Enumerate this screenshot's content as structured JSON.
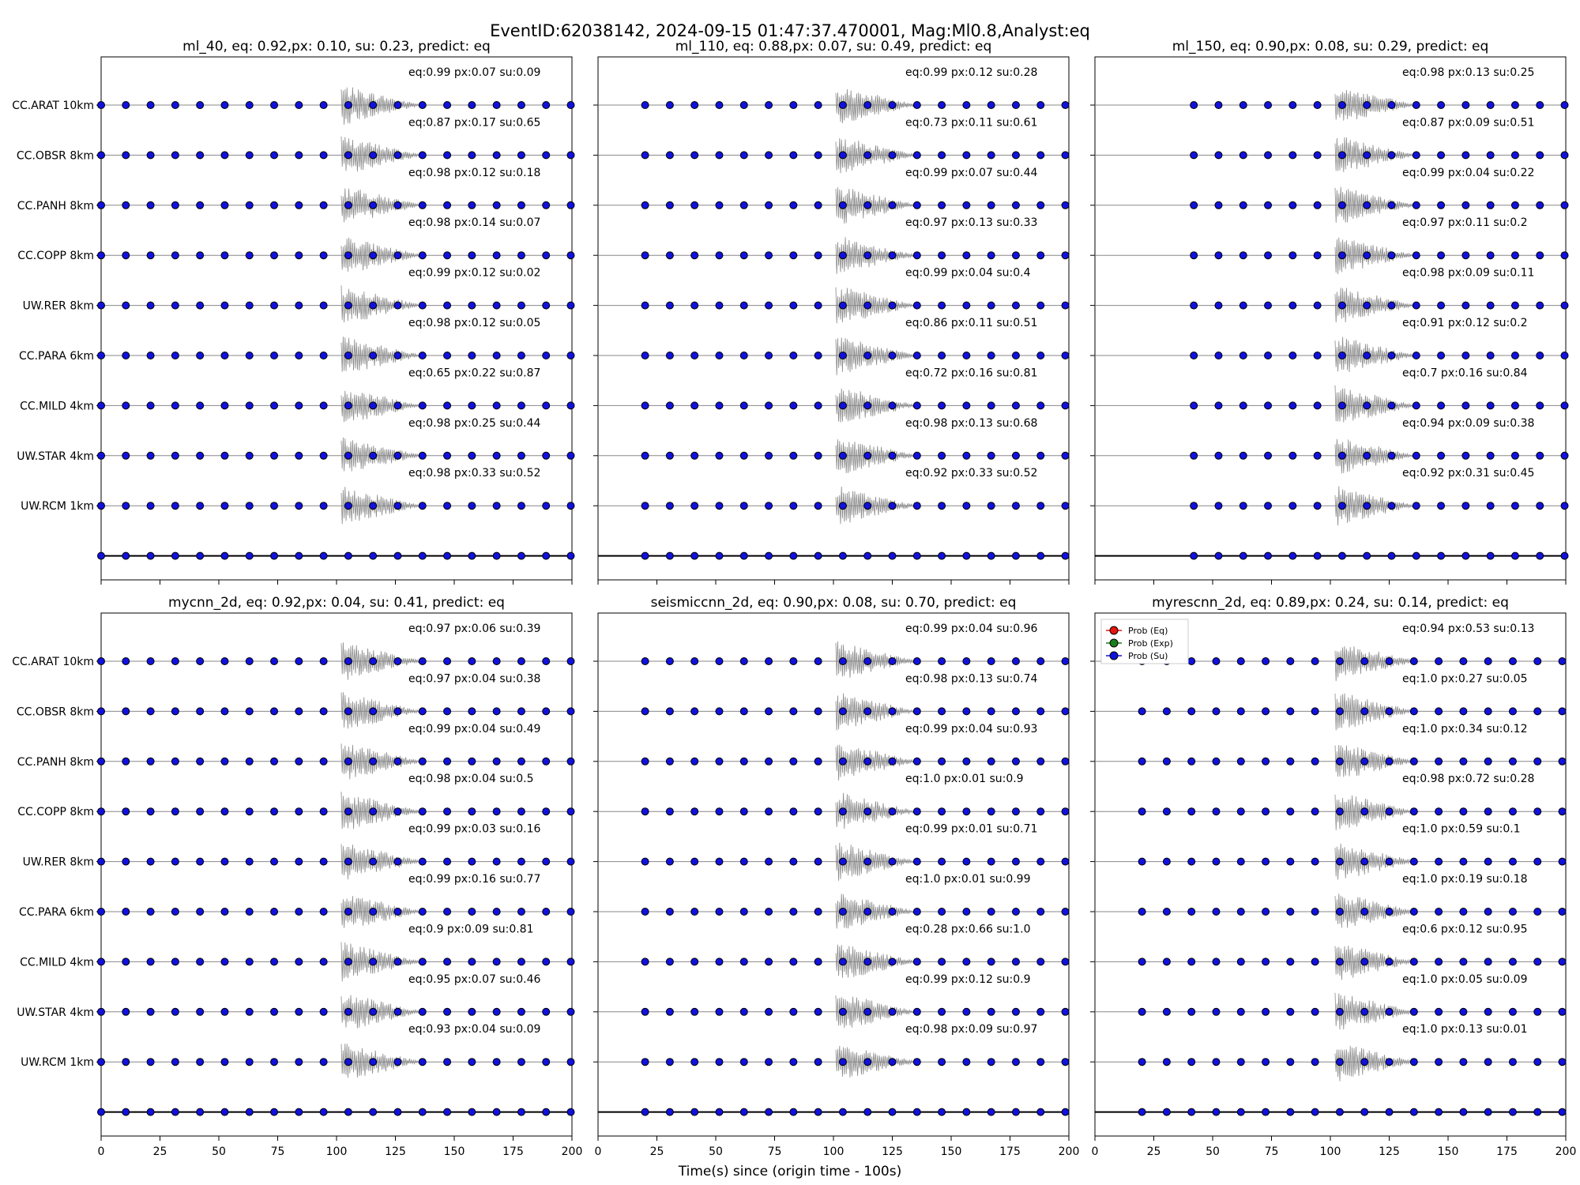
{
  "figure": {
    "suptitle": "EventID:62038142, 2024-09-15 01:47:37.470001, Mag:Ml0.8,Analyst:eq",
    "xlabel": "Time(s) since (origin time - 100s)"
  },
  "colors": {
    "eq": "#e8140f",
    "exp": "#1a7f1a",
    "su": "#1111dd",
    "waveform": "#888888"
  },
  "legend": {
    "entries": [
      "Prob (Eq)",
      "Prob (Exp)",
      "Prob (Su)"
    ],
    "panel_index": 5,
    "placement": "top-left"
  },
  "chart_data": [
    {
      "type": "scatter",
      "title": "ml_40, eq: 0.92,px: 0.10, su: 0.23, predict: eq",
      "xlim": [
        0,
        200
      ],
      "xticks": [],
      "stations": [
        "CC.ARAT 10km",
        "CC.OBSR 8km",
        "CC.PANH 8km",
        "CC.COPP 8km",
        "UW.RER 8km",
        "CC.PARA 6km",
        "CC.MILD 4km",
        "UW.STAR 4km",
        "UW.RCM 1km"
      ],
      "annotations": [
        "eq:0.99  px:0.07  su:0.09",
        "eq:0.87  px:0.17  su:0.65",
        "eq:0.98  px:0.12  su:0.18",
        "eq:0.98  px:0.14  su:0.07",
        "eq:0.99  px:0.12  su:0.02",
        "eq:0.98  px:0.12  su:0.05",
        "eq:0.65  px:0.22  su:0.87",
        "eq:0.98  px:0.25  su:0.44",
        "eq:0.98  px:0.33  su:0.52"
      ]
    },
    {
      "type": "scatter",
      "title": "ml_110, eq: 0.88,px: 0.07, su: 0.49, predict: eq",
      "xlim": [
        0,
        200
      ],
      "xticks": [],
      "stations": [],
      "annotations": [
        "eq:0.99  px:0.12  su:0.28",
        "eq:0.73  px:0.11  su:0.61",
        "eq:0.99  px:0.07  su:0.44",
        "eq:0.97  px:0.13  su:0.33",
        "eq:0.99  px:0.04  su:0.4",
        "eq:0.86  px:0.11  su:0.51",
        "eq:0.72  px:0.16  su:0.81",
        "eq:0.98  px:0.13  su:0.68",
        "eq:0.92  px:0.33  su:0.52"
      ]
    },
    {
      "type": "scatter",
      "title": "ml_150, eq: 0.90,px: 0.08, su: 0.29, predict: eq",
      "xlim": [
        0,
        200
      ],
      "xticks": [],
      "stations": [],
      "annotations": [
        "eq:0.98  px:0.13  su:0.25",
        "eq:0.87  px:0.09  su:0.51",
        "eq:0.99  px:0.04  su:0.22",
        "eq:0.97  px:0.11  su:0.2",
        "eq:0.98  px:0.09  su:0.11",
        "eq:0.91  px:0.12  su:0.2",
        "eq:0.7    px:0.16  su:0.84",
        "eq:0.94  px:0.09  su:0.38",
        "eq:0.92  px:0.31  su:0.45"
      ]
    },
    {
      "type": "scatter",
      "title": "mycnn_2d, eq: 0.92,px: 0.04, su: 0.41, predict: eq",
      "xlim": [
        0,
        200
      ],
      "xticks": [
        "0",
        "25",
        "50",
        "75",
        "100",
        "125",
        "150",
        "175",
        "200"
      ],
      "stations": [
        "CC.ARAT 10km",
        "CC.OBSR 8km",
        "CC.PANH 8km",
        "CC.COPP 8km",
        "UW.RER 8km",
        "CC.PARA 6km",
        "CC.MILD 4km",
        "UW.STAR 4km",
        "UW.RCM 1km"
      ],
      "annotations": [
        "eq:0.97  px:0.06  su:0.39",
        "eq:0.97  px:0.04  su:0.38",
        "eq:0.99  px:0.04  su:0.49",
        "eq:0.98  px:0.04  su:0.5",
        "eq:0.99  px:0.03  su:0.16",
        "eq:0.99  px:0.16  su:0.77",
        "eq:0.9    px:0.09  su:0.81",
        "eq:0.95  px:0.07  su:0.46",
        "eq:0.93  px:0.04  su:0.09"
      ]
    },
    {
      "type": "scatter",
      "title": "seismiccnn_2d, eq: 0.90,px: 0.08, su: 0.70, predict: eq",
      "xlim": [
        0,
        200
      ],
      "xticks": [
        "0",
        "25",
        "50",
        "75",
        "100",
        "125",
        "150",
        "175",
        "200"
      ],
      "stations": [],
      "annotations": [
        "eq:0.99  px:0.04  su:0.96",
        "eq:0.98  px:0.13  su:0.74",
        "eq:0.99  px:0.04  su:0.93",
        "eq:1.0    px:0.01  su:0.9",
        "eq:0.99  px:0.01  su:0.71",
        "eq:1.0    px:0.01  su:0.99",
        "eq:0.28  px:0.66  su:1.0",
        "eq:0.99  px:0.12  su:0.9",
        "eq:0.98  px:0.09  su:0.97"
      ]
    },
    {
      "type": "scatter",
      "title": "myrescnn_2d, eq: 0.89,px: 0.24, su: 0.14, predict: eq",
      "xlim": [
        0,
        200
      ],
      "xticks": [
        "0",
        "25",
        "50",
        "75",
        "100",
        "125",
        "150",
        "175",
        "200"
      ],
      "stations": [],
      "annotations": [
        "eq:0.94  px:0.53  su:0.13",
        "eq:1.0    px:0.27  su:0.05",
        "eq:1.0    px:0.34  su:0.12",
        "eq:0.98  px:0.72  su:0.28",
        "eq:1.0    px:0.59  su:0.1",
        "eq:1.0    px:0.19  su:0.18",
        "eq:0.6    px:0.12  su:0.95",
        "eq:1.0    px:0.05  su:0.09",
        "eq:1.0    px:0.13  su:0.01"
      ]
    }
  ]
}
